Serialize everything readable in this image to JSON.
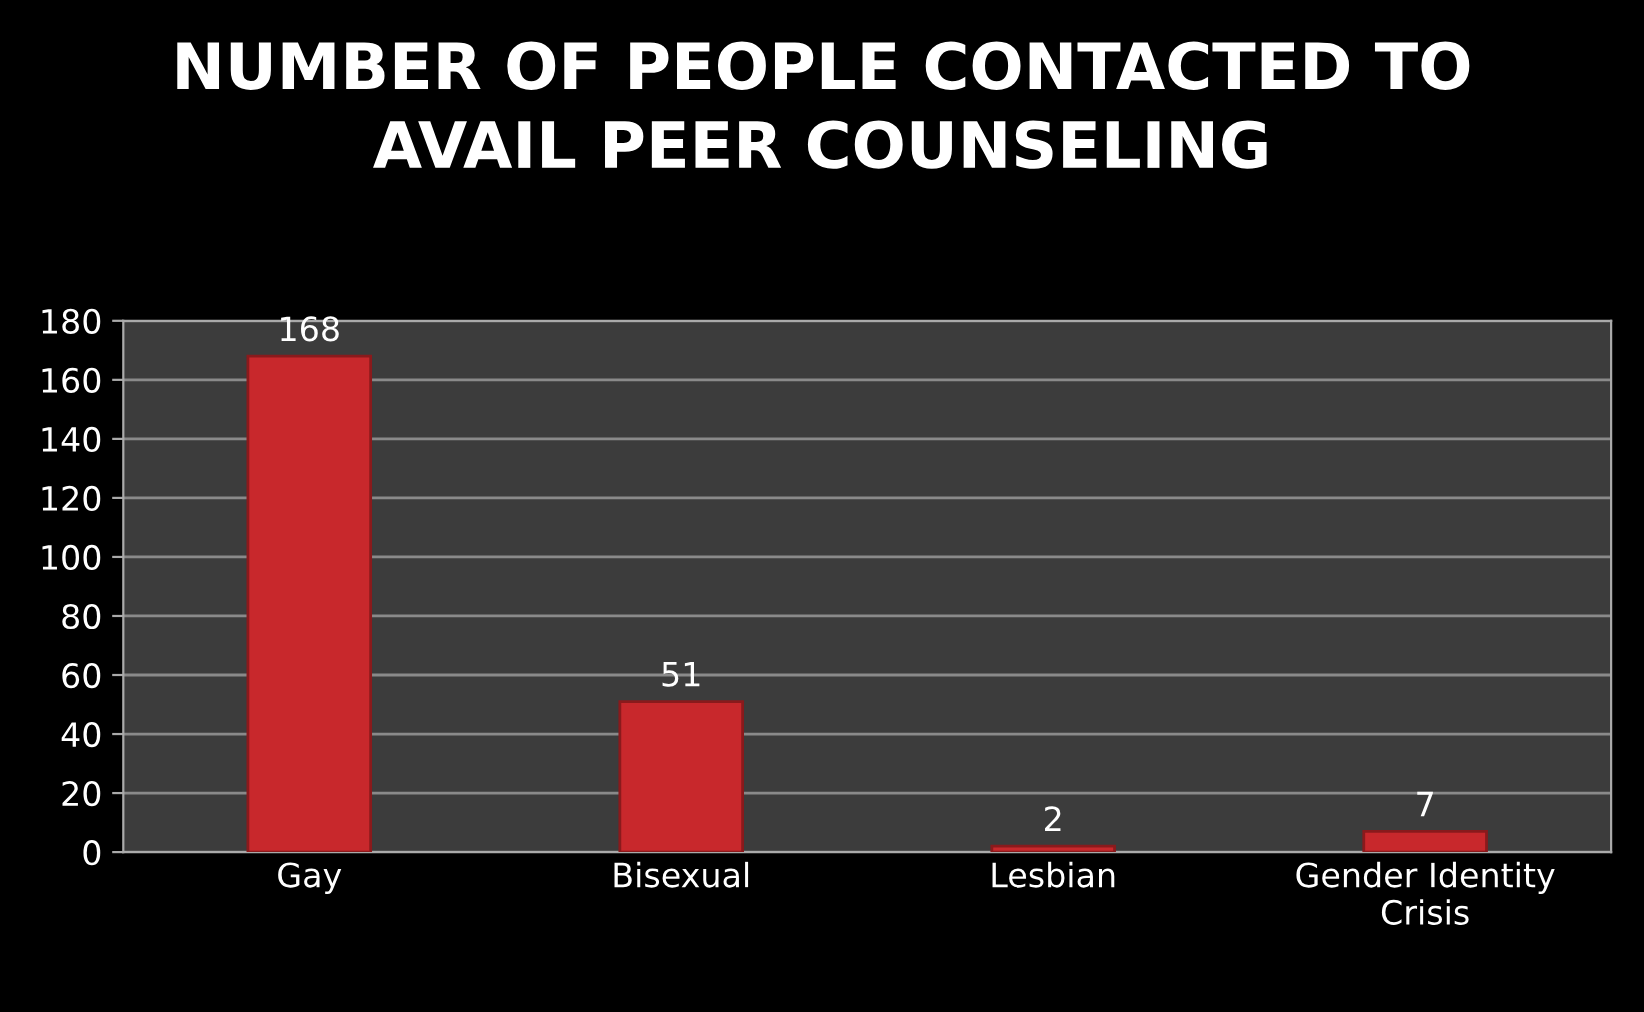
{
  "chart_data": {
    "type": "bar",
    "title": "NUMBER OF PEOPLE CONTACTED TO\nAVAIL PEER COUNSELING",
    "categories": [
      "Gay",
      "Bisexual",
      "Lesbian",
      "Gender Identity\nCrisis"
    ],
    "values": [
      168,
      51,
      2,
      7
    ],
    "color": "#c8282c",
    "ylim": [
      0,
      180
    ],
    "yticks": [
      0,
      20,
      40,
      60,
      80,
      100,
      120,
      140,
      160,
      180
    ],
    "grid": "y",
    "data_labels": true
  }
}
